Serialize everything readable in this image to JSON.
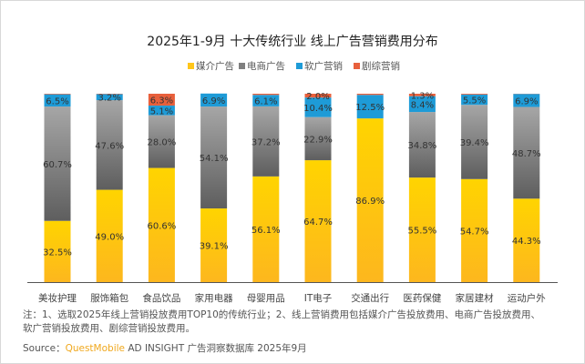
{
  "chart_data": {
    "type": "bar",
    "stacked": true,
    "percent": true,
    "title": "2025年1-9月 十大传统行业 线上广告营销费用分布",
    "legend_position": "top",
    "categories": [
      "美妆护理",
      "服饰箱包",
      "食品饮品",
      "家用电器",
      "母婴用品",
      "IT电子",
      "交通出行",
      "医药保健",
      "家居建材",
      "运动户外"
    ],
    "series": [
      {
        "name": "媒介广告",
        "color": "#FFC61A",
        "values": [
          32.5,
          49.0,
          60.6,
          39.1,
          56.1,
          64.7,
          86.9,
          55.5,
          54.7,
          44.3
        ]
      },
      {
        "name": "电商广告",
        "color": "#7F7F7F",
        "values": [
          60.7,
          47.6,
          28.0,
          54.1,
          37.2,
          22.9,
          0,
          34.8,
          39.4,
          48.7
        ]
      },
      {
        "name": "软广营销",
        "color": "#1E9BD7",
        "values": [
          6.5,
          3.2,
          5.1,
          6.9,
          6.1,
          10.4,
          12.5,
          8.4,
          5.5,
          6.9
        ]
      },
      {
        "name": "剧综营销",
        "color": "#E8603C",
        "values": [
          0.3,
          0.2,
          6.3,
          0,
          0.6,
          2.0,
          0.6,
          1.3,
          0.4,
          0.1
        ]
      }
    ],
    "ylim": [
      0,
      100
    ],
    "grid": false
  },
  "notes": {
    "line1": "注：1、选取2025年线上营销投放费用TOP10的传统行业；2、线上营销费用包括媒介广告投放费用、电商广告投放费用、",
    "line2": "软广营销投放费用、剧综营销投放费用。"
  },
  "source": {
    "label": "Source：",
    "brand": "QuestMobile",
    "text": " AD INSIGHT 广告洞察数据库 2025年9月"
  }
}
